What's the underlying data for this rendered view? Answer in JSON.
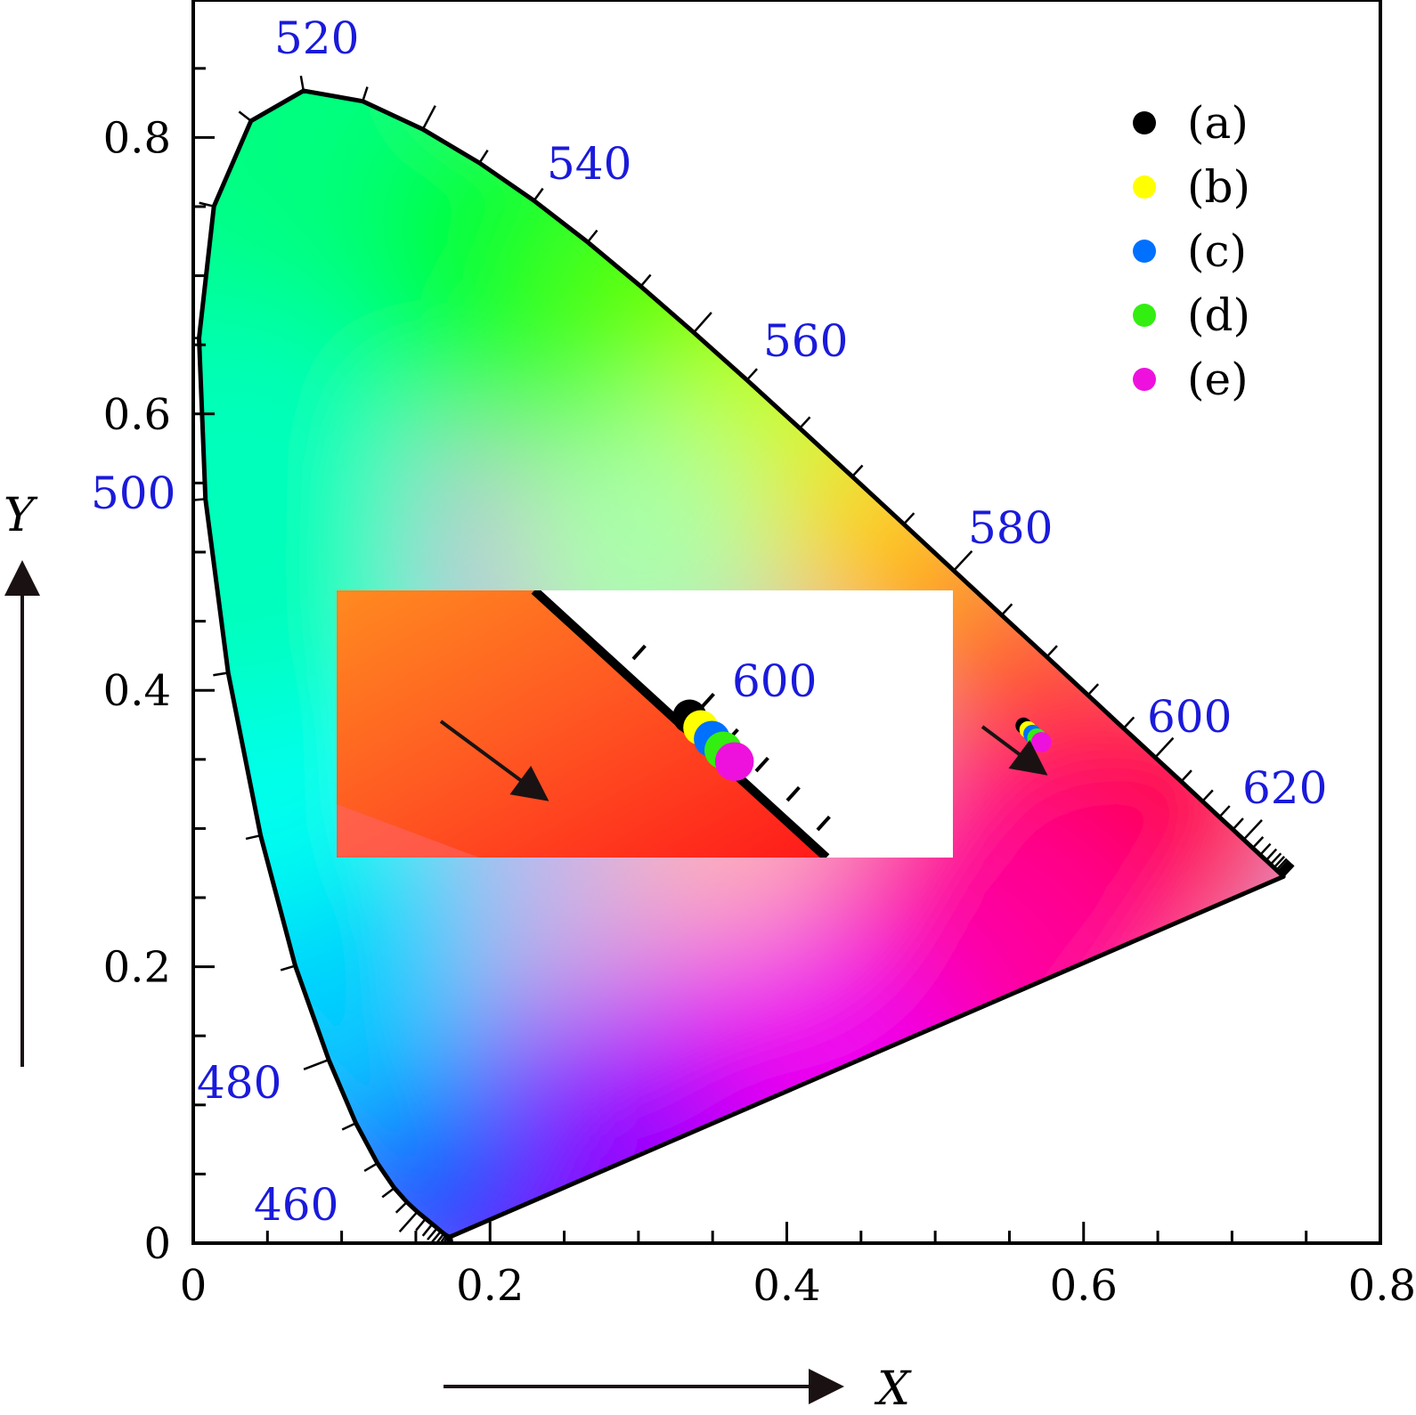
{
  "chart_data": {
    "type": "scatter",
    "title": "",
    "xlabel": "X",
    "ylabel": "Y",
    "xlim": [
      0,
      0.8
    ],
    "ylim": [
      0,
      0.87
    ],
    "x_ticks": [
      {
        "value": 0,
        "label": "0"
      },
      {
        "value": 0.2,
        "label": "0.2"
      },
      {
        "value": 0.4,
        "label": "0.4"
      },
      {
        "value": 0.6,
        "label": "0.6"
      },
      {
        "value": 0.8,
        "label": "0.8"
      }
    ],
    "y_ticks": [
      {
        "value": 0,
        "label": "0"
      },
      {
        "value": 0.2,
        "label": "0.2"
      },
      {
        "value": 0.4,
        "label": "0.4"
      },
      {
        "value": 0.6,
        "label": "0.6"
      },
      {
        "value": 0.8,
        "label": "0.8"
      }
    ],
    "grid": false,
    "legend_position": "top-right",
    "locus_points": [
      [
        0.1741,
        0.005
      ],
      [
        0.1738,
        0.0049
      ],
      [
        0.1736,
        0.0049
      ],
      [
        0.1733,
        0.0048
      ],
      [
        0.173,
        0.0048
      ],
      [
        0.1726,
        0.0048
      ],
      [
        0.1721,
        0.0048
      ],
      [
        0.1714,
        0.0051
      ],
      [
        0.1703,
        0.0058
      ],
      [
        0.1689,
        0.0069
      ],
      [
        0.1669,
        0.0086
      ],
      [
        0.1644,
        0.0109
      ],
      [
        0.1611,
        0.0138
      ],
      [
        0.1566,
        0.0177
      ],
      [
        0.151,
        0.0227
      ],
      [
        0.144,
        0.0297
      ],
      [
        0.1355,
        0.0399
      ],
      [
        0.1241,
        0.0578
      ],
      [
        0.1096,
        0.0868
      ],
      [
        0.0913,
        0.1327
      ],
      [
        0.0687,
        0.2007
      ],
      [
        0.0454,
        0.295
      ],
      [
        0.0235,
        0.4127
      ],
      [
        0.0082,
        0.5384
      ],
      [
        0.0039,
        0.6548
      ],
      [
        0.0139,
        0.7502
      ],
      [
        0.0389,
        0.812
      ],
      [
        0.0743,
        0.8338
      ],
      [
        0.1142,
        0.8262
      ],
      [
        0.1547,
        0.8059
      ],
      [
        0.1929,
        0.7816
      ],
      [
        0.2296,
        0.7543
      ],
      [
        0.2658,
        0.7243
      ],
      [
        0.3016,
        0.6923
      ],
      [
        0.3373,
        0.6589
      ],
      [
        0.3731,
        0.6245
      ],
      [
        0.4087,
        0.5896
      ],
      [
        0.4441,
        0.5547
      ],
      [
        0.4788,
        0.5202
      ],
      [
        0.5125,
        0.4866
      ],
      [
        0.5448,
        0.4544
      ],
      [
        0.5752,
        0.4242
      ],
      [
        0.6029,
        0.3965
      ],
      [
        0.627,
        0.3725
      ],
      [
        0.6482,
        0.3514
      ],
      [
        0.6658,
        0.334
      ],
      [
        0.6801,
        0.3197
      ],
      [
        0.6915,
        0.3083
      ],
      [
        0.7006,
        0.2993
      ],
      [
        0.7079,
        0.292
      ],
      [
        0.714,
        0.2859
      ],
      [
        0.719,
        0.2809
      ],
      [
        0.723,
        0.277
      ],
      [
        0.726,
        0.274
      ],
      [
        0.7283,
        0.2717
      ],
      [
        0.73,
        0.27
      ],
      [
        0.7311,
        0.2689
      ],
      [
        0.732,
        0.268
      ],
      [
        0.7327,
        0.2673
      ],
      [
        0.7334,
        0.2666
      ],
      [
        0.734,
        0.266
      ],
      [
        0.7344,
        0.2656
      ],
      [
        0.7346,
        0.2654
      ],
      [
        0.7347,
        0.2653
      ]
    ],
    "wavelength_labels": [
      {
        "label": "460",
        "x": 0.144,
        "y": 0.0297
      },
      {
        "label": "480",
        "x": 0.0913,
        "y": 0.1327
      },
      {
        "label": "500",
        "x": 0.0082,
        "y": 0.5384
      },
      {
        "label": "520",
        "x": 0.0743,
        "y": 0.8338
      },
      {
        "label": "540",
        "x": 0.2296,
        "y": 0.7543
      },
      {
        "label": "560",
        "x": 0.3731,
        "y": 0.6245
      },
      {
        "label": "580",
        "x": 0.5125,
        "y": 0.4866
      },
      {
        "label": "600",
        "x": 0.627,
        "y": 0.3725
      },
      {
        "label": "620",
        "x": 0.6915,
        "y": 0.3083
      }
    ],
    "series": [
      {
        "name": "(a)",
        "color": "#000000",
        "x": 0.5595,
        "y": 0.3745
      },
      {
        "name": "(b)",
        "color": "#ffff00",
        "x": 0.5625,
        "y": 0.3715
      },
      {
        "name": "(c)",
        "color": "#0070ff",
        "x": 0.5655,
        "y": 0.3685
      },
      {
        "name": "(d)",
        "color": "#33ee11",
        "x": 0.5685,
        "y": 0.3655
      },
      {
        "name": "(e)",
        "color": "#ee11dd",
        "x": 0.5715,
        "y": 0.3625
      }
    ],
    "inset": {
      "xlim": [
        0.465,
        0.63
      ],
      "ylim": [
        0.337,
        0.408
      ],
      "wavelength_label": "600"
    }
  }
}
